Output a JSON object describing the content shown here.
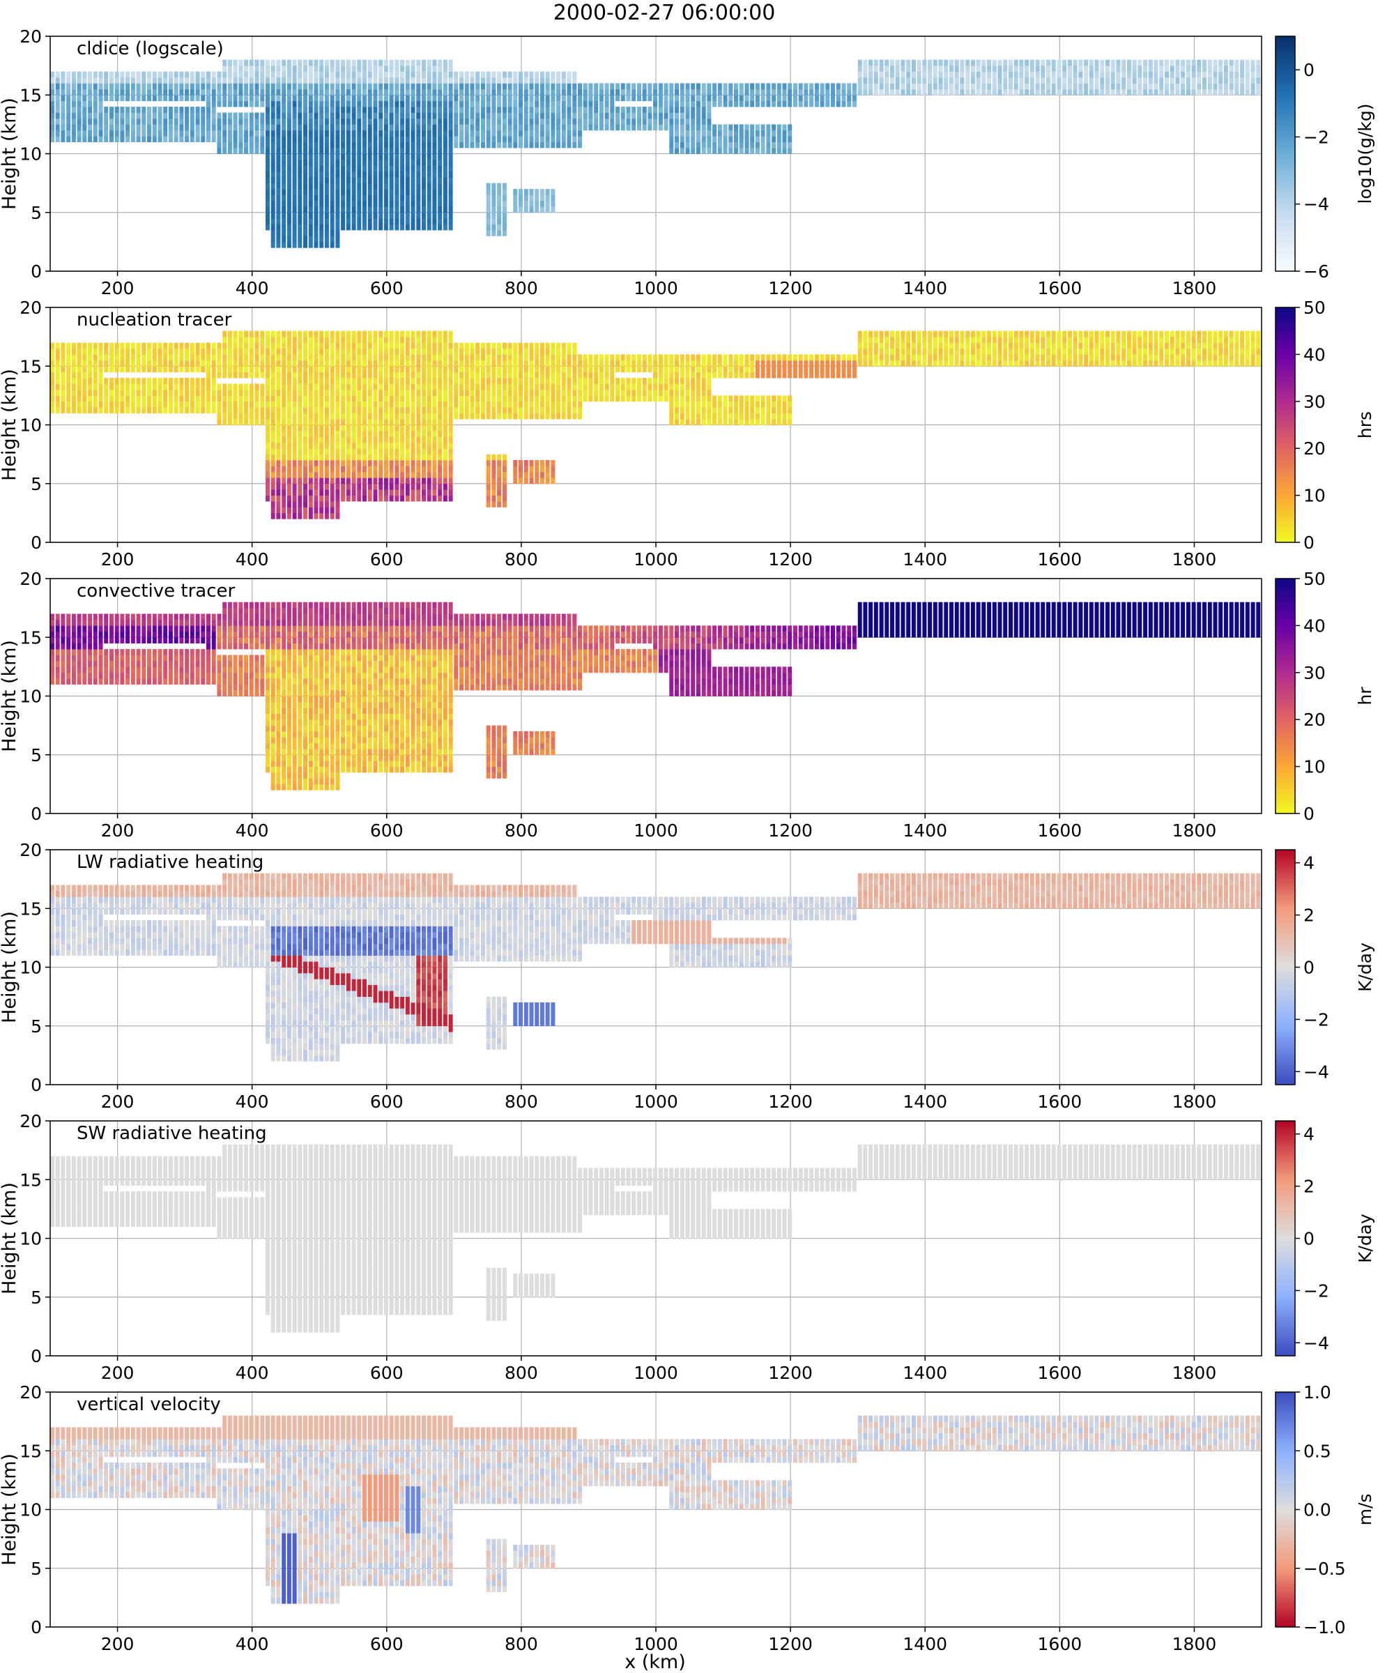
{
  "figure_title": "2000-02-27 06:00:00",
  "xlabel": "x (km)",
  "chart_data": [
    {
      "type": "heatmap",
      "title": "cldice (logscale)",
      "ylabel": "Height (km)",
      "xlim": [
        100,
        1900
      ],
      "ylim": [
        0,
        20
      ],
      "xticks": [
        200,
        400,
        600,
        800,
        1000,
        1200,
        1400,
        1600,
        1800
      ],
      "yticks": [
        0,
        5,
        10,
        15,
        20
      ],
      "grid": true,
      "colorbar": {
        "label": "log10(g/kg)",
        "ticks": [
          0,
          -2,
          -4,
          -6
        ],
        "ticklabels": [
          "0",
          "−2",
          "−4",
          "−6"
        ],
        "range": [
          -6,
          1
        ],
        "colors": [
          "#f7fbff",
          "#c6dbef",
          "#6baed6",
          "#2171b5",
          "#08306b"
        ]
      },
      "field": "cldice"
    },
    {
      "type": "heatmap",
      "title": "nucleation tracer",
      "ylabel": "Height (km)",
      "xlim": [
        100,
        1900
      ],
      "ylim": [
        0,
        20
      ],
      "xticks": [
        200,
        400,
        600,
        800,
        1000,
        1200,
        1400,
        1600,
        1800
      ],
      "yticks": [
        0,
        5,
        10,
        15,
        20
      ],
      "grid": true,
      "colorbar": {
        "label": "hrs",
        "ticks": [
          0,
          10,
          20,
          30,
          40,
          50
        ],
        "ticklabels": [
          "0",
          "10",
          "20",
          "30",
          "40",
          "50"
        ],
        "range": [
          0,
          50
        ],
        "colors": [
          "#f0f921",
          "#fca636",
          "#e16462",
          "#b12a90",
          "#6a00a8",
          "#0d0887"
        ]
      },
      "field": "nucleation"
    },
    {
      "type": "heatmap",
      "title": "convective tracer",
      "ylabel": "Height (km)",
      "xlim": [
        100,
        1900
      ],
      "ylim": [
        0,
        20
      ],
      "xticks": [
        200,
        400,
        600,
        800,
        1000,
        1200,
        1400,
        1600,
        1800
      ],
      "yticks": [
        0,
        5,
        10,
        15,
        20
      ],
      "grid": true,
      "colorbar": {
        "label": "hr",
        "ticks": [
          0,
          10,
          20,
          30,
          40,
          50
        ],
        "ticklabels": [
          "0",
          "10",
          "20",
          "30",
          "40",
          "50"
        ],
        "range": [
          0,
          50
        ],
        "colors": [
          "#f0f921",
          "#fca636",
          "#e16462",
          "#b12a90",
          "#6a00a8",
          "#0d0887"
        ]
      },
      "field": "convective"
    },
    {
      "type": "heatmap",
      "title": "LW radiative heating",
      "ylabel": "Height (km)",
      "xlim": [
        100,
        1900
      ],
      "ylim": [
        0,
        20
      ],
      "xticks": [
        200,
        400,
        600,
        800,
        1000,
        1200,
        1400,
        1600,
        1800
      ],
      "yticks": [
        0,
        5,
        10,
        15,
        20
      ],
      "grid": true,
      "colorbar": {
        "label": "K/day",
        "ticks": [
          4,
          2,
          0,
          -2,
          -4
        ],
        "ticklabels": [
          "4",
          "2",
          "0",
          "−2",
          "−4"
        ],
        "range": [
          -4.5,
          4.5
        ],
        "colors": [
          "#3b4cc0",
          "#8db0fe",
          "#dddddd",
          "#f49a7b",
          "#b40426"
        ]
      },
      "field": "lw"
    },
    {
      "type": "heatmap",
      "title": "SW radiative heating",
      "ylabel": "Height (km)",
      "xlim": [
        100,
        1900
      ],
      "ylim": [
        0,
        20
      ],
      "xticks": [
        200,
        400,
        600,
        800,
        1000,
        1200,
        1400,
        1600,
        1800
      ],
      "yticks": [
        0,
        5,
        10,
        15,
        20
      ],
      "grid": true,
      "colorbar": {
        "label": "K/day",
        "ticks": [
          4,
          2,
          0,
          -2,
          -4
        ],
        "ticklabels": [
          "4",
          "2",
          "0",
          "−2",
          "−4"
        ],
        "range": [
          -4.5,
          4.5
        ],
        "colors": [
          "#3b4cc0",
          "#8db0fe",
          "#dddddd",
          "#f49a7b",
          "#b40426"
        ]
      },
      "field": "sw"
    },
    {
      "type": "heatmap",
      "title": "vertical velocity",
      "ylabel": "Height (km)",
      "xlim": [
        100,
        1900
      ],
      "ylim": [
        0,
        20
      ],
      "xticks": [
        200,
        400,
        600,
        800,
        1000,
        1200,
        1400,
        1600,
        1800
      ],
      "yticks": [
        0,
        5,
        10,
        15,
        20
      ],
      "grid": true,
      "colorbar": {
        "label": "m/s",
        "ticks": [
          1,
          0.5,
          0,
          -0.5,
          -1
        ],
        "ticklabels": [
          "1.0",
          "0.5",
          "0.0",
          "−0.5",
          "−1.0"
        ],
        "range": [
          -1,
          1
        ],
        "colors": [
          "#b40426",
          "#f49a7b",
          "#dddddd",
          "#8db0fe",
          "#3b4cc0"
        ]
      },
      "field": "w"
    }
  ],
  "cloud_regions": [
    {
      "x0": 100,
      "x1": 880,
      "y0": 15.8,
      "y1": 17.2,
      "kind": "anvil-top"
    },
    {
      "x0": 360,
      "x1": 700,
      "y0": 16.5,
      "y1": 18.0,
      "kind": "anvil-top"
    },
    {
      "x0": 100,
      "x1": 1300,
      "y0": 14.0,
      "y1": 16.0,
      "kind": "anvil"
    },
    {
      "x0": 1300,
      "x1": 1900,
      "y0": 15.0,
      "y1": 17.8,
      "kind": "outflow"
    },
    {
      "x0": 100,
      "x1": 350,
      "y0": 10.8,
      "y1": 14.0,
      "kind": "anvil-lower"
    },
    {
      "x0": 420,
      "x1": 700,
      "y0": 3.5,
      "y1": 14.5,
      "kind": "core"
    },
    {
      "x0": 430,
      "x1": 470,
      "y0": 1.8,
      "y1": 6.0,
      "kind": "core"
    },
    {
      "x0": 470,
      "x1": 530,
      "y0": 2.2,
      "y1": 5.0,
      "kind": "core"
    },
    {
      "x0": 350,
      "x1": 420,
      "y0": 10.0,
      "y1": 13.5,
      "kind": "side"
    },
    {
      "x0": 700,
      "x1": 890,
      "y0": 10.5,
      "y1": 14.5,
      "kind": "side"
    },
    {
      "x0": 750,
      "x1": 780,
      "y0": 2.8,
      "y1": 7.5,
      "kind": "shaft"
    },
    {
      "x0": 790,
      "x1": 850,
      "y0": 5.0,
      "y1": 7.2,
      "kind": "shaft"
    },
    {
      "x0": 890,
      "x1": 1080,
      "y0": 12.0,
      "y1": 15.0,
      "kind": "side"
    },
    {
      "x0": 1020,
      "x1": 1200,
      "y0": 10.2,
      "y1": 12.5,
      "kind": "side"
    }
  ]
}
